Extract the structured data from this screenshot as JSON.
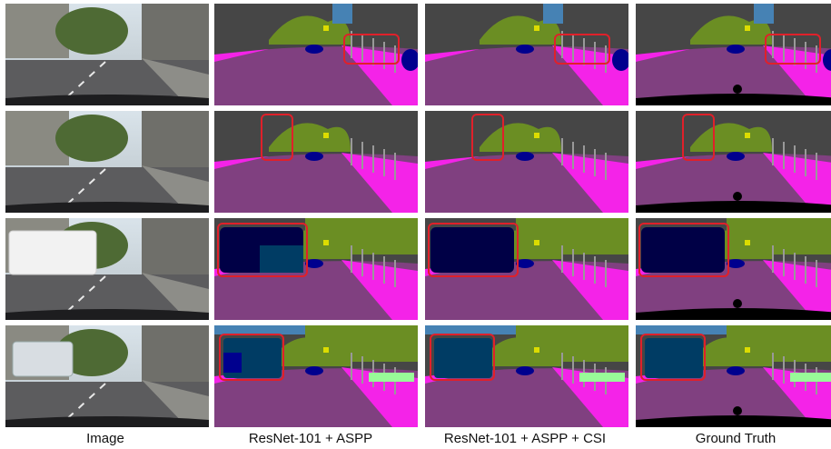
{
  "figure": {
    "columns": [
      {
        "label": "Image"
      },
      {
        "label": "ResNet-101 + ASPP"
      },
      {
        "label": "ResNet-101 + ASPP + CSI"
      },
      {
        "label": "Ground Truth"
      }
    ],
    "row_count": 4,
    "highlight_color": "#e0202a",
    "class_colors": {
      "road": "#804080",
      "sidewalk": "#f423e8",
      "building": "#464646",
      "vegetation": "#6b8e23",
      "sky": "#4682b4",
      "car": "#00008e",
      "truck": "#000046",
      "bus": "#003c64",
      "pole": "#999999",
      "traffic_sign": "#dcdc00",
      "terrain": "#98fb98",
      "void": "#000000"
    }
  }
}
